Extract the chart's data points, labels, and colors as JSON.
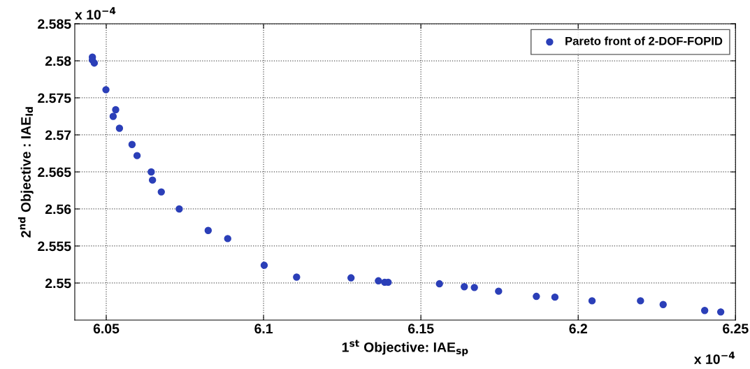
{
  "chart_data": {
    "type": "scatter",
    "xlabel": "1$^{st}$ Objective: IAE$_{sp}$",
    "ylabel": "2$^{nd}$ Objective : IAE$_{ld}$",
    "annotations": [
      "x 10$^{−4}$",
      "x 10$^{−4}$"
    ],
    "x": [
      6.0456,
      6.0456,
      6.0462,
      6.0499,
      6.053,
      6.0522,
      6.0542,
      6.0582,
      6.0598,
      6.0643,
      6.0647,
      6.0675,
      6.0732,
      6.0824,
      6.0886,
      6.1002,
      6.1105,
      6.1278,
      6.1365,
      6.1385,
      6.1396,
      6.1559,
      6.1638,
      6.167,
      6.1747,
      6.1867,
      6.1926,
      6.2044,
      6.2198,
      6.227,
      6.2402,
      6.2453
    ],
    "series": [
      {
        "name": "Pareto front of 2-DOF-FOPID",
        "color": "#2b3fb8",
        "values": [
          2.5805,
          2.5801,
          2.5797,
          2.5761,
          2.5734,
          2.5725,
          2.5709,
          2.5687,
          2.5672,
          2.565,
          2.5639,
          2.5623,
          2.56,
          2.5571,
          2.556,
          2.5524,
          2.5508,
          2.5507,
          2.5503,
          2.5501,
          2.5501,
          2.5499,
          2.5495,
          2.5494,
          2.5489,
          2.5482,
          2.5481,
          2.5476,
          2.5476,
          2.5471,
          2.5463,
          2.5461
        ]
      }
    ],
    "xlim": [
      6.04,
      6.25
    ],
    "xticks": [
      {
        "value": 6.05,
        "label": "6.05"
      },
      {
        "value": 6.1,
        "label": "6.1"
      },
      {
        "value": 6.15,
        "label": "6.15"
      },
      {
        "value": 6.2,
        "label": "6.2"
      },
      {
        "value": 6.25,
        "label": "6.25"
      }
    ],
    "ylim": [
      2.545,
      2.585
    ],
    "yticks": [
      {
        "value": 2.55,
        "label": "2.55"
      },
      {
        "value": 2.555,
        "label": "2.555"
      },
      {
        "value": 2.56,
        "label": "2.56"
      },
      {
        "value": 2.565,
        "label": "2.565"
      },
      {
        "value": 2.57,
        "label": "2.57"
      },
      {
        "value": 2.575,
        "label": "2.575"
      },
      {
        "value": 2.58,
        "label": "2.58"
      },
      {
        "value": 2.585,
        "label": "2.585"
      }
    ],
    "grid": true,
    "legend": "top right",
    "marker": "circle"
  }
}
